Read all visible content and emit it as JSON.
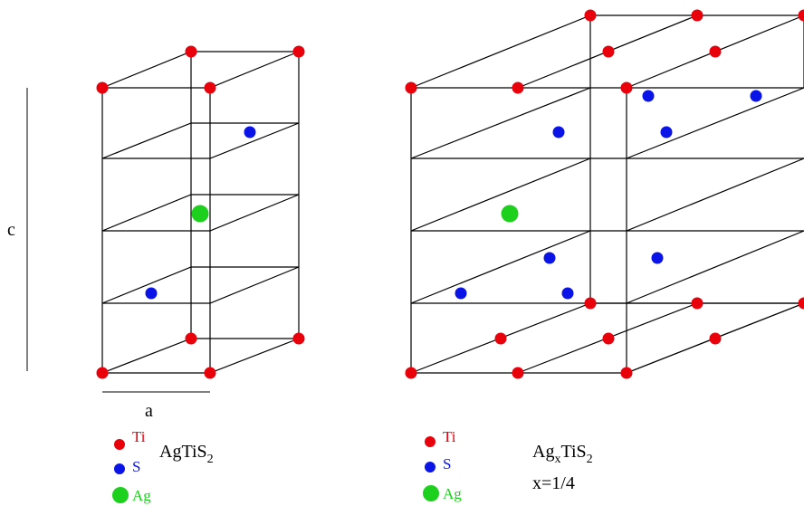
{
  "labels": {
    "c": "c",
    "a": "a"
  },
  "left_structure": {
    "formula_main": "AgTiS",
    "formula_sub": "2"
  },
  "right_structure": {
    "formula_ag": "Ag",
    "formula_x_sub": "x",
    "formula_rest": "TiS",
    "formula_sub": "2",
    "composition": "x=1/4"
  },
  "legend": {
    "ti": "Ti",
    "s": "S",
    "ag": "Ag"
  },
  "colors": {
    "ti": "#e8000b",
    "s": "#0a14e6",
    "ag": "#1ed01e",
    "line": "#000000"
  }
}
